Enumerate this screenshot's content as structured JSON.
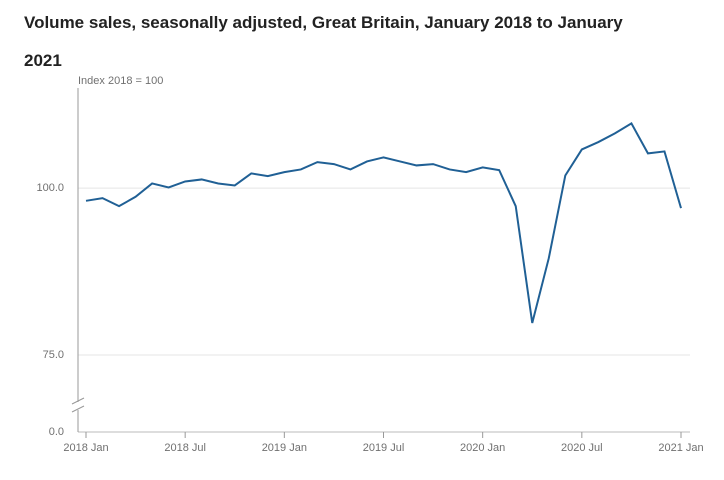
{
  "chart_data": {
    "type": "line",
    "title": "Volume sales, seasonally adjusted, Great Britain, January 2018 to January 2021",
    "y_axis_label": "Index 2018 = 100",
    "categories": [
      "2018 Jan",
      null,
      null,
      null,
      null,
      null,
      "2018 Jul",
      null,
      null,
      null,
      null,
      null,
      "2019 Jan",
      null,
      null,
      null,
      null,
      null,
      "2019 Jul",
      null,
      null,
      null,
      null,
      null,
      "2020 Jan",
      null,
      null,
      null,
      null,
      null,
      "2020 Jul",
      null,
      null,
      null,
      null,
      null,
      "2021 Jan"
    ],
    "series": [
      {
        "name": "Volume sales",
        "color": "#206095",
        "values": [
          98.1,
          98.5,
          97.3,
          98.7,
          100.7,
          100.1,
          101.0,
          101.3,
          100.7,
          100.4,
          102.2,
          101.8,
          102.4,
          102.8,
          103.9,
          103.6,
          102.8,
          104.0,
          104.6,
          104.0,
          103.4,
          103.6,
          102.8,
          102.4,
          103.1,
          102.7,
          97.3,
          79.8,
          89.5,
          101.9,
          105.8,
          106.9,
          108.2,
          109.7,
          105.2,
          105.5,
          97.0
        ]
      }
    ],
    "ylim": [
      0,
      115
    ],
    "yticks": [
      {
        "value": 0,
        "label": "0.0"
      },
      {
        "value": 75,
        "label": "75.0"
      },
      {
        "value": 100,
        "label": "100.0"
      }
    ],
    "axis_break": true,
    "grid": true
  }
}
